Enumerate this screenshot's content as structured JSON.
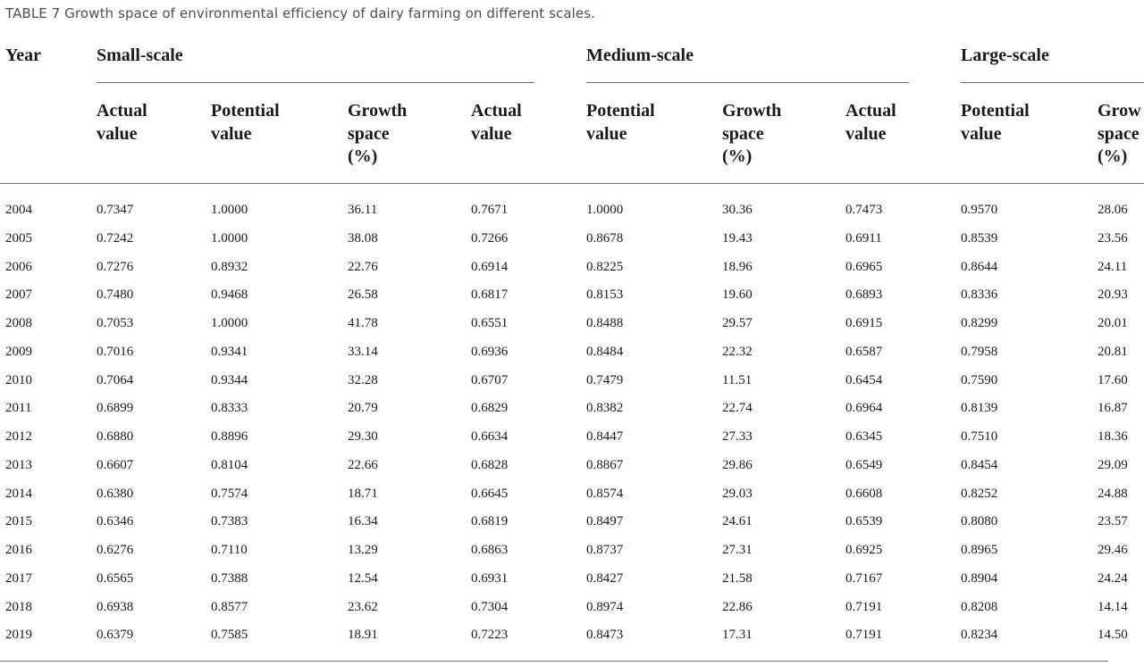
{
  "caption": "TABLE 7 Growth space of environmental efficiency of dairy farming on different scales.",
  "header": {
    "year": "Year",
    "groups": [
      "Small-scale",
      "Medium-scale",
      "Large-scale"
    ],
    "subcols": [
      "Actual\nvalue",
      "Potential\nvalue",
      "Growth\nspace\n(%)",
      "Actual\nvalue",
      "Potential\nvalue",
      "Growth\nspace\n(%)",
      "Actual\nvalue",
      "Potential\nvalue",
      "Grow\nspace\n(%)"
    ]
  },
  "rows": [
    [
      "2004",
      "0.7347",
      "1.0000",
      "36.11",
      "0.7671",
      "1.0000",
      "30.36",
      "0.7473",
      "0.9570",
      "28.06"
    ],
    [
      "2005",
      "0.7242",
      "1.0000",
      "38.08",
      "0.7266",
      "0.8678",
      "19.43",
      "0.6911",
      "0.8539",
      "23.56"
    ],
    [
      "2006",
      "0.7276",
      "0.8932",
      "22.76",
      "0.6914",
      "0.8225",
      "18.96",
      "0.6965",
      "0.8644",
      "24.11"
    ],
    [
      "2007",
      "0.7480",
      "0.9468",
      "26.58",
      "0.6817",
      "0.8153",
      "19.60",
      "0.6893",
      "0.8336",
      "20.93"
    ],
    [
      "2008",
      "0.7053",
      "1.0000",
      "41.78",
      "0.6551",
      "0.8488",
      "29.57",
      "0.6915",
      "0.8299",
      "20.01"
    ],
    [
      "2009",
      "0.7016",
      "0.9341",
      "33.14",
      "0.6936",
      "0.8484",
      "22.32",
      "0.6587",
      "0.7958",
      "20.81"
    ],
    [
      "2010",
      "0.7064",
      "0.9344",
      "32.28",
      "0.6707",
      "0.7479",
      "11.51",
      "0.6454",
      "0.7590",
      "17.60"
    ],
    [
      "2011",
      "0.6899",
      "0.8333",
      "20.79",
      "0.6829",
      "0.8382",
      "22.74",
      "0.6964",
      "0.8139",
      "16.87"
    ],
    [
      "2012",
      "0.6880",
      "0.8896",
      "29.30",
      "0.6634",
      "0.8447",
      "27.33",
      "0.6345",
      "0.7510",
      "18.36"
    ],
    [
      "2013",
      "0.6607",
      "0.8104",
      "22.66",
      "0.6828",
      "0.8867",
      "29.86",
      "0.6549",
      "0.8454",
      "29.09"
    ],
    [
      "2014",
      "0.6380",
      "0.7574",
      "18.71",
      "0.6645",
      "0.8574",
      "29.03",
      "0.6608",
      "0.8252",
      "24.88"
    ],
    [
      "2015",
      "0.6346",
      "0.7383",
      "16.34",
      "0.6819",
      "0.8497",
      "24.61",
      "0.6539",
      "0.8080",
      "23.57"
    ],
    [
      "2016",
      "0.6276",
      "0.7110",
      "13.29",
      "0.6863",
      "0.8737",
      "27.31",
      "0.6925",
      "0.8965",
      "29.46"
    ],
    [
      "2017",
      "0.6565",
      "0.7388",
      "12.54",
      "0.6931",
      "0.8427",
      "21.58",
      "0.7167",
      "0.8904",
      "24.24"
    ],
    [
      "2018",
      "0.6938",
      "0.8577",
      "23.62",
      "0.7304",
      "0.8974",
      "22.86",
      "0.7191",
      "0.8208",
      "14.14"
    ],
    [
      "2019",
      "0.6379",
      "0.7585",
      "18.91",
      "0.7223",
      "0.8473",
      "17.31",
      "0.7191",
      "0.8234",
      "14.50"
    ]
  ]
}
